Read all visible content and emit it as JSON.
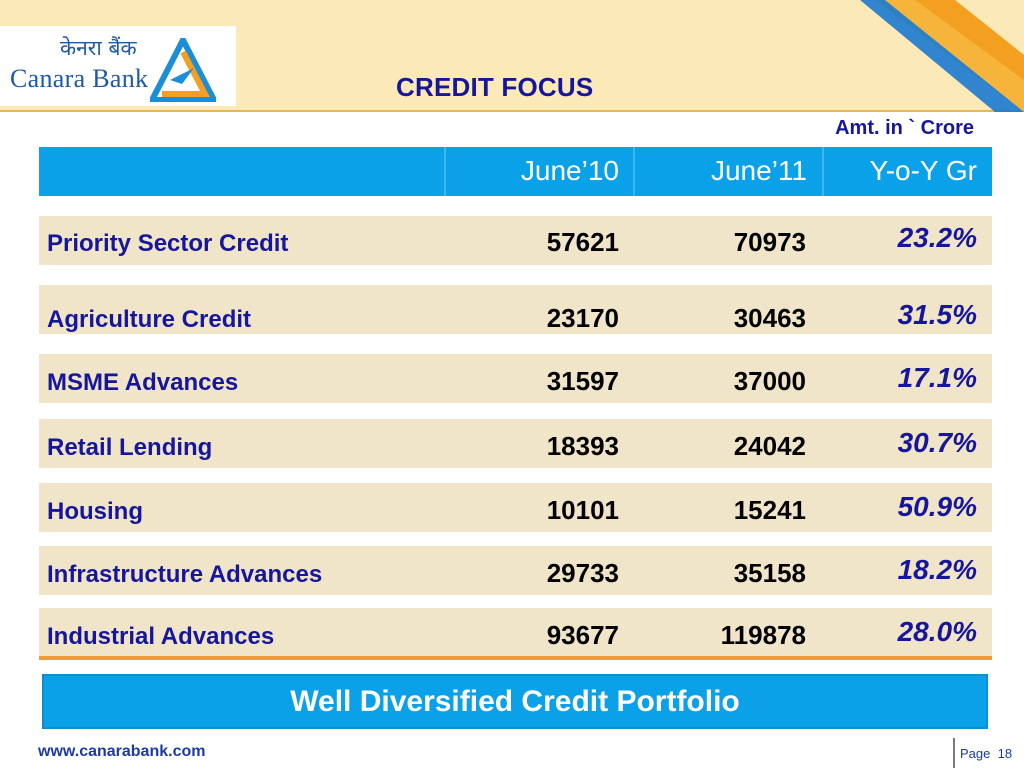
{
  "header": {
    "logo_hindi": "केनरा बैंक",
    "logo_english": "Canara Bank",
    "title": "CREDIT FOCUS",
    "unit_note": "Amt. in ` Crore"
  },
  "table": {
    "columns": [
      "",
      "June’10",
      "June’11",
      "Y-o-Y Gr"
    ],
    "rows": [
      {
        "label": "Priority Sector Credit",
        "june10": "57621",
        "june11": "70973",
        "yoy": "23.2%"
      },
      {
        "label": "Agriculture Credit",
        "june10": "23170",
        "june11": "30463",
        "yoy": "31.5%"
      },
      {
        "label": "MSME Advances",
        "june10": "31597",
        "june11": "37000",
        "yoy": "17.1%"
      },
      {
        "label": "Retail Lending",
        "june10": "18393",
        "june11": "24042",
        "yoy": "30.7%"
      },
      {
        "label": "Housing",
        "june10": "10101",
        "june11": "15241",
        "yoy": "50.9%"
      },
      {
        "label": "Infrastructure Advances",
        "june10": "29733",
        "june11": "35158",
        "yoy": "18.2%"
      },
      {
        "label": "Industrial Advances",
        "june10": "93677",
        "june11": "119878",
        "yoy": "28.0%"
      }
    ]
  },
  "banner": "Well Diversified Credit Portfolio",
  "footer": {
    "url": "www.canarabank.com",
    "page_label": "Page",
    "page_number": "18"
  },
  "colors": {
    "header_band": "#fbe9b8",
    "table_header": "#0aa1e8",
    "row_fill": "#f0e5c9",
    "title_blue": "#16169c",
    "accent_orange": "#f39a3a"
  }
}
